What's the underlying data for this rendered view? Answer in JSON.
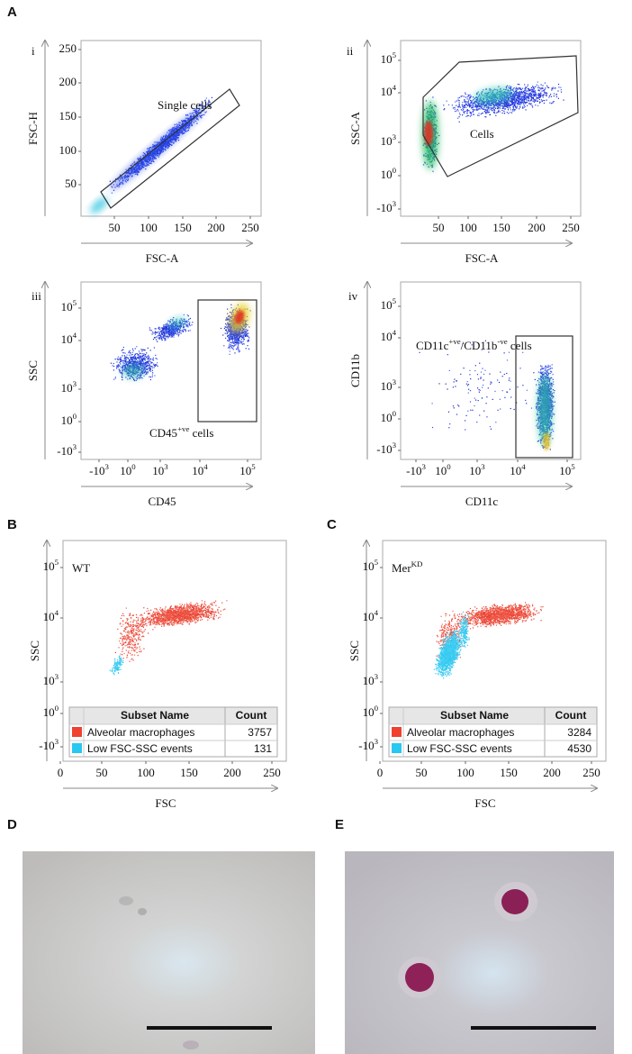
{
  "panel_a": {
    "label": "A",
    "plots": [
      {
        "label": "i",
        "y_label": "FSC-H",
        "x_label": "FSC-A",
        "y_ticks": [
          "250",
          "200",
          "150",
          "100",
          "50"
        ],
        "x_ticks": [
          "50",
          "100",
          "150",
          "200",
          "250"
        ],
        "gate_label": [
          {
            "text": "Single cells"
          }
        ]
      },
      {
        "label": "ii",
        "y_label": "SSC-A",
        "x_label": "FSC-A",
        "y_ticks": [
          [
            {
              "text": "10"
            },
            {
              "sup": "5"
            }
          ],
          [
            {
              "text": "10"
            },
            {
              "sup": "4"
            }
          ],
          [
            {
              "text": "10"
            },
            {
              "sup": "3"
            }
          ],
          [
            {
              "text": "10"
            },
            {
              "sup": "0"
            }
          ],
          [
            {
              "text": "-10"
            },
            {
              "sup": "3"
            }
          ]
        ],
        "x_ticks": [
          "50",
          "100",
          "150",
          "200",
          "250"
        ],
        "gate_label": [
          {
            "text": "Cells"
          }
        ]
      },
      {
        "label": "iii",
        "y_label": "SSC",
        "x_label": "CD45",
        "y_ticks": [
          [
            {
              "text": "10"
            },
            {
              "sup": "5"
            }
          ],
          [
            {
              "text": "10"
            },
            {
              "sup": "4"
            }
          ],
          [
            {
              "text": "10"
            },
            {
              "sup": "3"
            }
          ],
          [
            {
              "text": "10"
            },
            {
              "sup": "0"
            }
          ],
          [
            {
              "text": "-10"
            },
            {
              "sup": "3"
            }
          ]
        ],
        "x_ticks": [
          [
            {
              "text": "-10"
            },
            {
              "sup": "3"
            }
          ],
          [
            {
              "text": "10"
            },
            {
              "sup": "0"
            }
          ],
          [
            {
              "text": "10"
            },
            {
              "sup": "3"
            }
          ],
          [
            {
              "text": "10"
            },
            {
              "sup": "4"
            }
          ],
          [
            {
              "text": "10"
            },
            {
              "sup": "5"
            }
          ]
        ],
        "gate_label": [
          {
            "text": "CD45"
          },
          {
            "sup": "+ve"
          },
          {
            "text": " cells"
          }
        ]
      },
      {
        "label": "iv",
        "y_label": "CD11b",
        "x_label": "CD11c",
        "y_ticks": [
          [
            {
              "text": "10"
            },
            {
              "sup": "5"
            }
          ],
          [
            {
              "text": "10"
            },
            {
              "sup": "4"
            }
          ],
          [
            {
              "text": "10"
            },
            {
              "sup": "3"
            }
          ],
          [
            {
              "text": "10"
            },
            {
              "sup": "0"
            }
          ],
          [
            {
              "text": "-10"
            },
            {
              "sup": "3"
            }
          ]
        ],
        "x_ticks": [
          [
            {
              "text": "-10"
            },
            {
              "sup": "3"
            }
          ],
          [
            {
              "text": "10"
            },
            {
              "sup": "0"
            }
          ],
          [
            {
              "text": "10"
            },
            {
              "sup": "3"
            }
          ],
          [
            {
              "text": "10"
            },
            {
              "sup": "4"
            }
          ],
          [
            {
              "text": "10"
            },
            {
              "sup": "5"
            }
          ]
        ],
        "gate_label": [
          {
            "text": "CD11c"
          },
          {
            "sup": "+ve"
          },
          {
            "text": "/CD11b"
          },
          {
            "sup": "-ve"
          },
          {
            "text": " cells"
          }
        ]
      }
    ]
  },
  "panel_b": {
    "label": "B",
    "title": [
      {
        "text": "WT"
      }
    ],
    "y_label": "SSC",
    "x_label": "FSC",
    "y_ticks": [
      [
        {
          "text": "10"
        },
        {
          "sup": "5"
        }
      ],
      [
        {
          "text": "10"
        },
        {
          "sup": "4"
        }
      ],
      [
        {
          "text": "10"
        },
        {
          "sup": "3"
        }
      ],
      [
        {
          "text": "10"
        },
        {
          "sup": "0"
        }
      ],
      [
        {
          "text": "-10"
        },
        {
          "sup": "3"
        }
      ]
    ],
    "x_ticks": [
      "0",
      "50",
      "100",
      "150",
      "200",
      "250"
    ],
    "table": {
      "header": [
        "Subset Name",
        "Count"
      ],
      "rows": [
        {
          "name": "Alveolar macrophages",
          "count": "3757"
        },
        {
          "name": "Low FSC-SSC events",
          "count": "131"
        }
      ]
    }
  },
  "panel_c": {
    "label": "C",
    "title": [
      {
        "text": "Mer"
      },
      {
        "sup": "KD"
      }
    ],
    "y_label": "SSC",
    "x_label": "FSC",
    "y_ticks": [
      [
        {
          "text": "10"
        },
        {
          "sup": "5"
        }
      ],
      [
        {
          "text": "10"
        },
        {
          "sup": "4"
        }
      ],
      [
        {
          "text": "10"
        },
        {
          "sup": "3"
        }
      ],
      [
        {
          "text": "10"
        },
        {
          "sup": "0"
        }
      ],
      [
        {
          "text": "-10"
        },
        {
          "sup": "3"
        }
      ]
    ],
    "x_ticks": [
      "0",
      "50",
      "100",
      "150",
      "200",
      "250"
    ],
    "table": {
      "header": [
        "Subset Name",
        "Count"
      ],
      "rows": [
        {
          "name": "Alveolar macrophages",
          "count": "3284"
        },
        {
          "name": "Low FSC-SSC events",
          "count": "4530"
        }
      ]
    }
  },
  "panel_d": {
    "label": "D"
  },
  "panel_e": {
    "label": "E"
  }
}
